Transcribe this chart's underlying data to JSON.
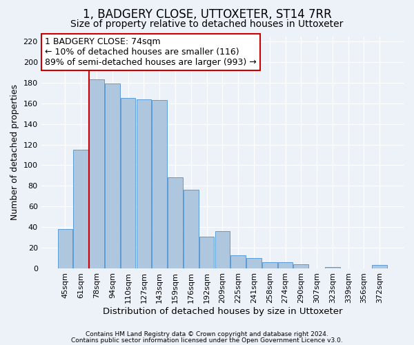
{
  "title": "1, BADGERY CLOSE, UTTOXETER, ST14 7RR",
  "subtitle": "Size of property relative to detached houses in Uttoxeter",
  "xlabel": "Distribution of detached houses by size in Uttoxeter",
  "ylabel": "Number of detached properties",
  "footer_line1": "Contains HM Land Registry data © Crown copyright and database right 2024.",
  "footer_line2": "Contains public sector information licensed under the Open Government Licence v3.0.",
  "categories": [
    "45sqm",
    "61sqm",
    "78sqm",
    "94sqm",
    "110sqm",
    "127sqm",
    "143sqm",
    "159sqm",
    "176sqm",
    "192sqm",
    "209sqm",
    "225sqm",
    "241sqm",
    "258sqm",
    "274sqm",
    "290sqm",
    "307sqm",
    "323sqm",
    "339sqm",
    "356sqm",
    "372sqm"
  ],
  "values": [
    38,
    115,
    183,
    179,
    165,
    164,
    163,
    88,
    76,
    31,
    36,
    13,
    10,
    6,
    6,
    4,
    0,
    1,
    0,
    0,
    3
  ],
  "bar_color": "#aec6de",
  "bar_edge_color": "#5b9bd5",
  "red_line_x": 1.5,
  "red_line_color": "#cc0000",
  "annotation_text_line1": "1 BADGERY CLOSE: 74sqm",
  "annotation_text_line2": "← 10% of detached houses are smaller (116)",
  "annotation_text_line3": "89% of semi-detached houses are larger (993) →",
  "annotation_box_edge_color": "#cc0000",
  "annotation_box_fill": "#ffffff",
  "ylim": [
    0,
    225
  ],
  "yticks": [
    0,
    20,
    40,
    60,
    80,
    100,
    120,
    140,
    160,
    180,
    200,
    220
  ],
  "background_color": "#edf2f9",
  "grid_color": "#ffffff",
  "title_fontsize": 12,
  "subtitle_fontsize": 10,
  "xlabel_fontsize": 9.5,
  "ylabel_fontsize": 9,
  "tick_fontsize": 8,
  "annotation_fontsize": 9,
  "footer_fontsize": 6.5
}
